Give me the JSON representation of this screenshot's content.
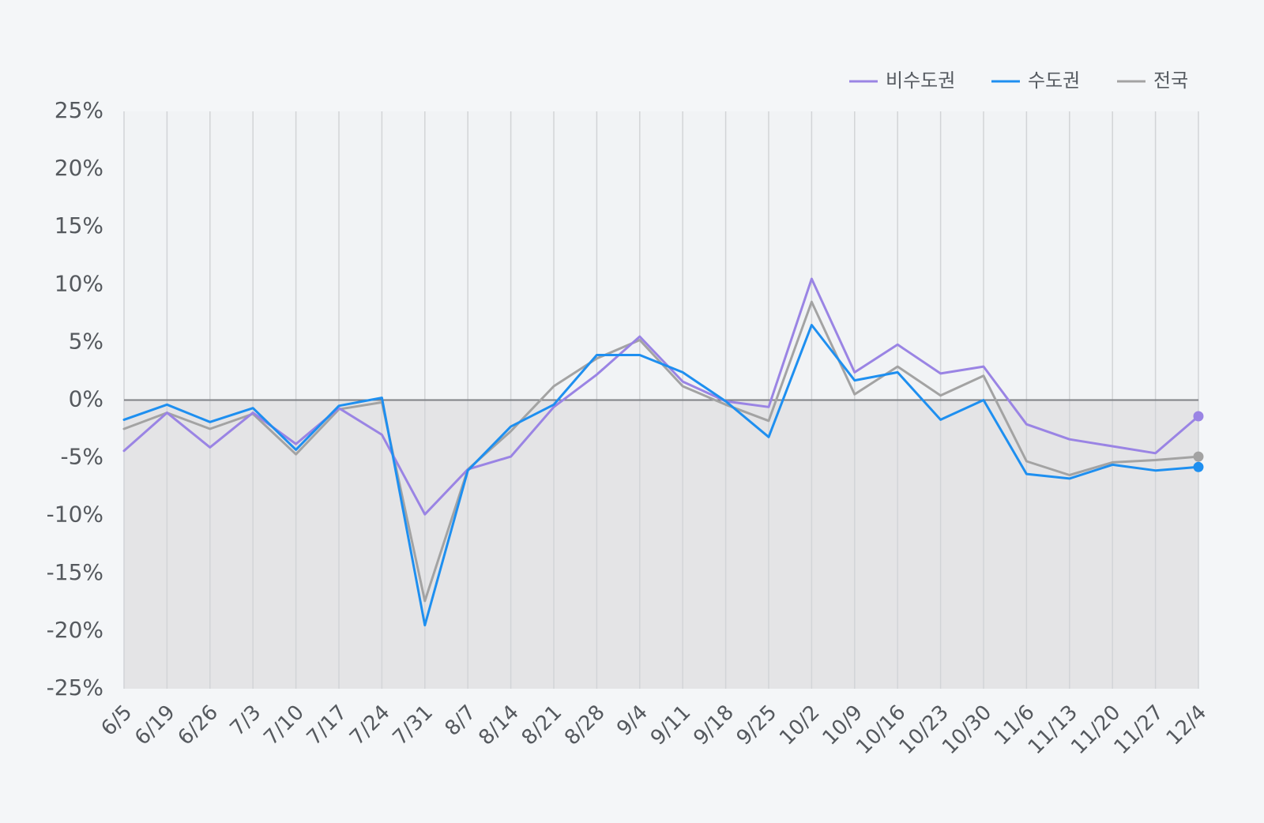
{
  "chart_data": {
    "type": "line",
    "title": "",
    "xlabel": "",
    "ylabel": "",
    "ylim": [
      -25,
      25
    ],
    "yticks": [
      25,
      20,
      15,
      10,
      5,
      0,
      -5,
      -10,
      -15,
      -20,
      -25
    ],
    "ytick_labels": [
      "25%",
      "20%",
      "15%",
      "10%",
      "5%",
      "0%",
      "-5%",
      "-10%",
      "-15%",
      "-20%",
      "-25%"
    ],
    "grid": "vertical lines at each category",
    "shaded_below_zero": true,
    "legend_position": "top-right",
    "categories": [
      "6/5",
      "6/19",
      "6/26",
      "7/3",
      "7/10",
      "7/17",
      "7/24",
      "7/31",
      "8/7",
      "8/14",
      "8/21",
      "8/28",
      "9/4",
      "9/11",
      "9/18",
      "9/25",
      "10/2",
      "10/9",
      "10/16",
      "10/23",
      "10/30",
      "11/6",
      "11/13",
      "11/20",
      "11/27",
      "12/4"
    ],
    "series": [
      {
        "name": "비수도권",
        "color": "#9a84e4",
        "values": [
          -4.4,
          -1.1,
          -4.1,
          -1.1,
          -3.8,
          -0.7,
          -3.0,
          -9.9,
          -6.0,
          -4.9,
          -0.6,
          2.2,
          5.5,
          1.6,
          -0.1,
          -0.6,
          10.5,
          2.4,
          4.8,
          2.3,
          2.9,
          -2.1,
          -3.4,
          -4.0,
          -4.6,
          -1.4
        ]
      },
      {
        "name": "수도권",
        "color": "#1e8ff0",
        "values": [
          -1.7,
          -0.4,
          -1.9,
          -0.7,
          -4.3,
          -0.5,
          0.2,
          -19.5,
          -6.1,
          -2.3,
          -0.4,
          3.9,
          3.9,
          2.4,
          -0.1,
          -3.2,
          6.5,
          1.7,
          2.4,
          -1.7,
          0.0,
          -6.4,
          -6.8,
          -5.6,
          -6.1,
          -5.8
        ]
      },
      {
        "name": "전국",
        "color": "#a3a3a3",
        "values": [
          -2.5,
          -1.1,
          -2.5,
          -1.2,
          -4.7,
          -0.8,
          -0.2,
          -17.4,
          -6.0,
          -2.7,
          1.2,
          3.6,
          5.2,
          1.2,
          -0.4,
          -1.8,
          8.5,
          0.5,
          2.9,
          0.4,
          2.1,
          -5.3,
          -6.5,
          -5.4,
          -5.2,
          -4.9
        ]
      }
    ]
  }
}
